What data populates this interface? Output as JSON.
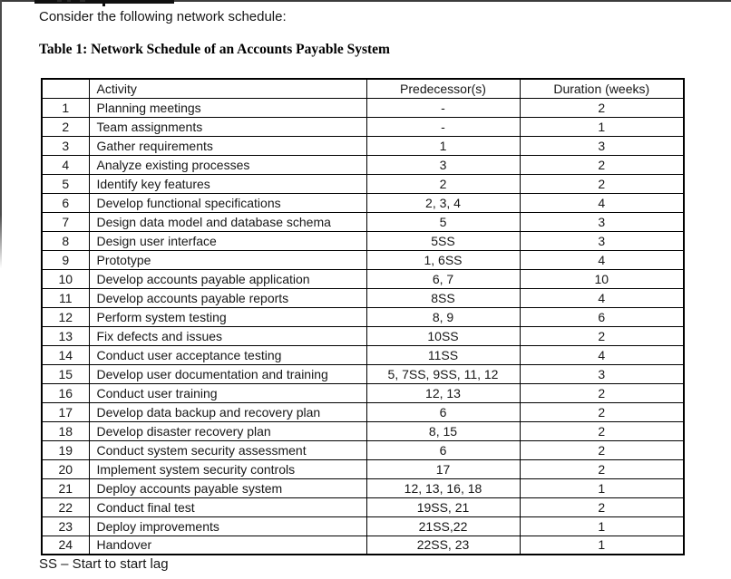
{
  "page": {
    "intro_text": "Consider the following network schedule:",
    "table_title": "Table 1: Network Schedule of an Accounts Payable System",
    "footnote": "SS – Start to start lag"
  },
  "table": {
    "headers": {
      "index": "",
      "activity": "Activity",
      "predecessors": "Predecessor(s)",
      "duration": "Duration (weeks)"
    },
    "rows": [
      {
        "index": "1",
        "activity": "Planning meetings",
        "predecessors": "-",
        "duration": "2"
      },
      {
        "index": "2",
        "activity": "Team assignments",
        "predecessors": "-",
        "duration": "1"
      },
      {
        "index": "3",
        "activity": "Gather requirements",
        "predecessors": "1",
        "duration": "3"
      },
      {
        "index": "4",
        "activity": "Analyze existing processes",
        "predecessors": "3",
        "duration": "2"
      },
      {
        "index": "5",
        "activity": "Identify key features",
        "predecessors": "2",
        "duration": "2"
      },
      {
        "index": "6",
        "activity": "Develop functional specifications",
        "predecessors": "2, 3, 4",
        "duration": "4"
      },
      {
        "index": "7",
        "activity": "Design data model and database schema",
        "predecessors": "5",
        "duration": "3"
      },
      {
        "index": "8",
        "activity": "Design user interface",
        "predecessors": "5SS",
        "duration": "3"
      },
      {
        "index": "9",
        "activity": "Prototype",
        "predecessors": "1, 6SS",
        "duration": "4"
      },
      {
        "index": "10",
        "activity": "Develop accounts payable application",
        "predecessors": "6, 7",
        "duration": "10"
      },
      {
        "index": "11",
        "activity": "Develop accounts payable reports",
        "predecessors": "8SS",
        "duration": "4"
      },
      {
        "index": "12",
        "activity": "Perform system testing",
        "predecessors": "8, 9",
        "duration": "6"
      },
      {
        "index": "13",
        "activity": "Fix defects and issues",
        "predecessors": "10SS",
        "duration": "2"
      },
      {
        "index": "14",
        "activity": "Conduct user acceptance testing",
        "predecessors": "11SS",
        "duration": "4"
      },
      {
        "index": "15",
        "activity": "Develop user documentation and training",
        "predecessors": "5, 7SS, 9SS, 11, 12",
        "duration": "3"
      },
      {
        "index": "16",
        "activity": "Conduct user training",
        "predecessors": "12, 13",
        "duration": "2"
      },
      {
        "index": "17",
        "activity": "Develop data backup and recovery plan",
        "predecessors": "6",
        "duration": "2"
      },
      {
        "index": "18",
        "activity": "Develop disaster recovery plan",
        "predecessors": "8, 15",
        "duration": "2"
      },
      {
        "index": "19",
        "activity": "Conduct system security assessment",
        "predecessors": "6",
        "duration": "2"
      },
      {
        "index": "20",
        "activity": "Implement system security controls",
        "predecessors": "17",
        "duration": "2"
      },
      {
        "index": "21",
        "activity": "Deploy accounts payable system",
        "predecessors": "12, 13, 16, 18",
        "duration": "1"
      },
      {
        "index": "22",
        "activity": "Conduct final test",
        "predecessors": "19SS, 21",
        "duration": "2"
      },
      {
        "index": "23",
        "activity": "Deploy improvements",
        "predecessors": "21SS,22",
        "duration": "1"
      },
      {
        "index": "24",
        "activity": "Handover",
        "predecessors": "22SS, 23",
        "duration": "1"
      }
    ]
  }
}
